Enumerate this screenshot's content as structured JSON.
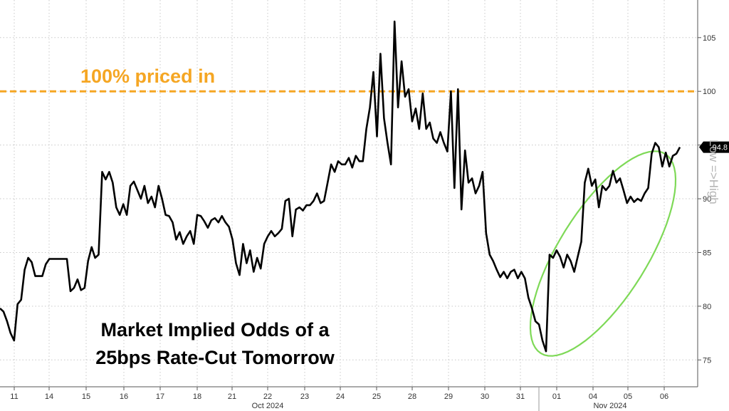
{
  "chart_data": {
    "type": "line",
    "title_lines": [
      "Market Implied Odds of a",
      "25bps Rate-Cut Tomorrow"
    ],
    "xlabel": "",
    "ylabel": "",
    "ylim": [
      72.5,
      108.5
    ],
    "yticks": [
      75,
      80,
      85,
      90,
      95,
      100,
      105
    ],
    "x_tick_labels": [
      "11",
      "14",
      "15",
      "16",
      "17",
      "18",
      "21",
      "22",
      "23",
      "24",
      "25",
      "28",
      "29",
      "30",
      "31",
      "01",
      "04",
      "05",
      "06"
    ],
    "month_labels": [
      "Oct 2024",
      "Nov 2024"
    ],
    "grid": true,
    "reference_line": {
      "value": 100,
      "label": "100% priced in",
      "color": "#f5a623"
    },
    "last_value_label": "94.8",
    "side_legend": "Low =>High",
    "line_color": "#000000",
    "highlight_color": "#7ed957",
    "series": [
      {
        "values": [
          79.8,
          79.5,
          78.6,
          77.5,
          76.8,
          80.2,
          80.6,
          83.4,
          84.5,
          84.1,
          82.8,
          82.8,
          82.8,
          83.9,
          84.4,
          84.4,
          84.4,
          84.4,
          84.4,
          84.4,
          81.4,
          81.7,
          82.5,
          81.5,
          81.7,
          84.2,
          85.5,
          84.5,
          84.8,
          92.5,
          91.8,
          92.5,
          91.5,
          89.2,
          88.5,
          89.5,
          88.5,
          91.2,
          91.6,
          90.8,
          90.0,
          91.2,
          89.6,
          90.2,
          89.2,
          91.2,
          90.0,
          88.5,
          88.4,
          87.8,
          86.2,
          86.9,
          85.8,
          86.5,
          87.0,
          85.8,
          88.5,
          88.4,
          87.9,
          87.3,
          88.0,
          88.2,
          87.8,
          88.4,
          87.8,
          87.4,
          86.2,
          84.0,
          82.9,
          85.8,
          84.0,
          85.2,
          83.2,
          84.5,
          83.5,
          85.8,
          86.5,
          87.0,
          86.5,
          86.8,
          87.2,
          89.8,
          90.0,
          86.5,
          89.0,
          89.2,
          88.9,
          89.4,
          89.4,
          89.8,
          90.5,
          89.6,
          89.8,
          91.5,
          93.2,
          92.5,
          93.5,
          93.2,
          93.2,
          93.8,
          92.9,
          94.0,
          93.5,
          93.5,
          96.5,
          98.5,
          101.8,
          95.8,
          103.5,
          97.5,
          95.2,
          93.2,
          106.5,
          98.5,
          102.8,
          99.5,
          100.2,
          97.2,
          98.4,
          96.5,
          99.8,
          96.5,
          97.1,
          95.6,
          95.2,
          96.2,
          95.2,
          94.4,
          100.0,
          91.0,
          100.2,
          89.0,
          94.5,
          91.5,
          91.9,
          90.5,
          91.2,
          92.5,
          86.8,
          84.8,
          84.2,
          83.4,
          82.7,
          83.2,
          82.6,
          83.2,
          83.4,
          82.6,
          83.2,
          82.6,
          80.8,
          79.8,
          78.6,
          78.3,
          76.8,
          75.8,
          84.8,
          84.5,
          85.2,
          84.6,
          83.6,
          84.8,
          84.2,
          83.2,
          84.6,
          86.0,
          91.5,
          92.8,
          91.2,
          91.8,
          89.2,
          91.2,
          90.8,
          91.2,
          92.6,
          91.5,
          91.9,
          90.8,
          89.6,
          90.2,
          89.7,
          90.0,
          89.8,
          90.5,
          91.0,
          94.2,
          95.2,
          94.8,
          93.0,
          94.3,
          93.0,
          94.0,
          94.2,
          94.8
        ]
      }
    ]
  }
}
